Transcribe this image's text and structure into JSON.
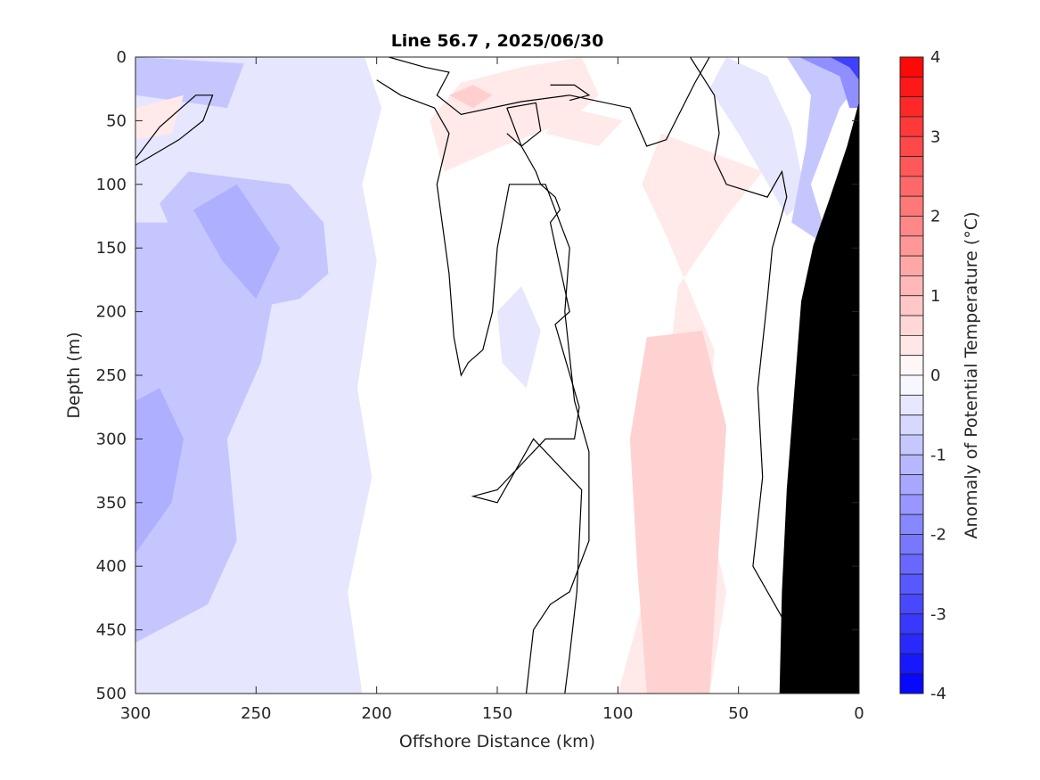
{
  "chart_data": {
    "type": "heatmap",
    "subtype": "filled-contour-section",
    "title": "Line 56.7 , 2025/06/30",
    "xlabel": "Offshore Distance (km)",
    "ylabel": "Depth (m)",
    "colorbar_label": "Anomaly of Potential Temperature (°C)",
    "xlim": [
      300,
      0
    ],
    "x_reversed": true,
    "ylim": [
      500,
      0
    ],
    "y_reversed": true,
    "xticks": [
      300,
      250,
      200,
      150,
      100,
      50,
      0
    ],
    "yticks": [
      0,
      50,
      100,
      150,
      200,
      250,
      300,
      350,
      400,
      450,
      500
    ],
    "colorbar_ticks": [
      4,
      3,
      2,
      1,
      0,
      -1,
      -2,
      -3,
      -4
    ],
    "colorbar_range": [
      -4,
      4
    ],
    "colorbar_levels": 32,
    "colormap": {
      "negative": "#0000ff",
      "zero": "#ffffff",
      "positive": "#ff0000"
    },
    "land_color": "#000000",
    "land_polygon": [
      {
        "x": 0,
        "y": 35
      },
      {
        "x": 5,
        "y": 70
      },
      {
        "x": 12,
        "y": 110
      },
      {
        "x": 19,
        "y": 148
      },
      {
        "x": 24,
        "y": 192
      },
      {
        "x": 30,
        "y": 340
      },
      {
        "x": 32,
        "y": 420
      },
      {
        "x": 33,
        "y": 500
      },
      {
        "x": 0,
        "y": 500
      }
    ],
    "regions": [
      {
        "value": -0.4,
        "points": [
          [
            300,
            0
          ],
          [
            205,
            0
          ],
          [
            198,
            40
          ],
          [
            206,
            100
          ],
          [
            200,
            160
          ],
          [
            208,
            260
          ],
          [
            202,
            330
          ],
          [
            212,
            420
          ],
          [
            206,
            500
          ],
          [
            300,
            500
          ]
        ]
      },
      {
        "value": -0.9,
        "points": [
          [
            300,
            130
          ],
          [
            255,
            130
          ],
          [
            242,
            180
          ],
          [
            248,
            240
          ],
          [
            262,
            300
          ],
          [
            258,
            380
          ],
          [
            270,
            430
          ],
          [
            300,
            460
          ]
        ]
      },
      {
        "value": -0.9,
        "points": [
          [
            272,
            180
          ],
          [
            258,
            200
          ],
          [
            232,
            190
          ],
          [
            220,
            170
          ],
          [
            222,
            130
          ],
          [
            236,
            100
          ],
          [
            278,
            90
          ],
          [
            290,
            115
          ],
          [
            282,
            150
          ]
        ]
      },
      {
        "value": -1.25,
        "points": [
          [
            258,
            100
          ],
          [
            240,
            150
          ],
          [
            250,
            190
          ],
          [
            264,
            160
          ],
          [
            276,
            120
          ]
        ]
      },
      {
        "value": -1.25,
        "points": [
          [
            300,
            270
          ],
          [
            290,
            260
          ],
          [
            280,
            300
          ],
          [
            285,
            350
          ],
          [
            300,
            390
          ]
        ]
      },
      {
        "value": -0.9,
        "points": [
          [
            300,
            0
          ],
          [
            255,
            5
          ],
          [
            262,
            40
          ],
          [
            300,
            30
          ]
        ]
      },
      {
        "value": -0.4,
        "points": [
          [
            55,
            0
          ],
          [
            38,
            15
          ],
          [
            28,
            55
          ],
          [
            22,
            110
          ],
          [
            30,
            125
          ],
          [
            50,
            60
          ],
          [
            62,
            25
          ]
        ]
      },
      {
        "value": -0.9,
        "points": [
          [
            30,
            0
          ],
          [
            20,
            30
          ],
          [
            22,
            70
          ],
          [
            28,
            130
          ],
          [
            12,
            150
          ],
          [
            20,
            100
          ],
          [
            8,
            40
          ],
          [
            0,
            20
          ],
          [
            0,
            0
          ]
        ]
      },
      {
        "value": -1.75,
        "points": [
          [
            25,
            0
          ],
          [
            8,
            15
          ],
          [
            4,
            40
          ],
          [
            0,
            40
          ],
          [
            0,
            0
          ]
        ]
      },
      {
        "value": -3.0,
        "points": [
          [
            12,
            0
          ],
          [
            4,
            8
          ],
          [
            0,
            18
          ],
          [
            0,
            0
          ]
        ]
      },
      {
        "value": -0.4,
        "points": [
          [
            140,
            180
          ],
          [
            132,
            215
          ],
          [
            138,
            260
          ],
          [
            148,
            240
          ],
          [
            150,
            200
          ]
        ]
      },
      {
        "value": 0.35,
        "points": [
          [
            115,
            0
          ],
          [
            108,
            30
          ],
          [
            120,
            50
          ],
          [
            148,
            70
          ],
          [
            172,
            90
          ],
          [
            178,
            50
          ],
          [
            165,
            20
          ],
          [
            140,
            8
          ]
        ]
      },
      {
        "value": 0.75,
        "points": [
          [
            170,
            30
          ],
          [
            160,
            40
          ],
          [
            152,
            30
          ],
          [
            160,
            22
          ]
        ]
      },
      {
        "value": 0.35,
        "points": [
          [
            130,
            60
          ],
          [
            108,
            70
          ],
          [
            98,
            50
          ],
          [
            120,
            40
          ]
        ]
      },
      {
        "value": 0.35,
        "points": [
          [
            300,
            40
          ],
          [
            280,
            30
          ],
          [
            285,
            60
          ],
          [
            300,
            65
          ]
        ]
      },
      {
        "value": 0.35,
        "points": [
          [
            82,
            60
          ],
          [
            40,
            90
          ],
          [
            55,
            125
          ],
          [
            75,
            180
          ],
          [
            80,
            260
          ],
          [
            75,
            330
          ],
          [
            100,
            500
          ],
          [
            92,
            500
          ],
          [
            62,
            500
          ],
          [
            55,
            420
          ],
          [
            65,
            340
          ],
          [
            60,
            230
          ],
          [
            80,
            140
          ],
          [
            90,
            100
          ]
        ]
      },
      {
        "value": 0.7,
        "points": [
          [
            88,
            220
          ],
          [
            65,
            215
          ],
          [
            55,
            290
          ],
          [
            58,
            380
          ],
          [
            62,
            500
          ],
          [
            88,
            500
          ],
          [
            92,
            400
          ],
          [
            95,
            300
          ]
        ]
      }
    ],
    "zero_contours": [
      [
        [
          300,
          80
        ],
        [
          290,
          55
        ],
        [
          275,
          30
        ],
        [
          268,
          30
        ],
        [
          272,
          50
        ],
        [
          282,
          65
        ],
        [
          300,
          85
        ]
      ],
      [
        [
          200,
          18
        ],
        [
          190,
          30
        ],
        [
          176,
          40
        ],
        [
          170,
          60
        ],
        [
          175,
          100
        ],
        [
          170,
          170
        ],
        [
          168,
          220
        ],
        [
          165,
          250
        ],
        [
          162,
          240
        ],
        [
          156,
          230
        ],
        [
          152,
          200
        ],
        [
          150,
          150
        ],
        [
          145,
          100
        ],
        [
          140,
          100
        ],
        [
          130,
          100
        ],
        [
          120,
          150
        ],
        [
          122,
          200
        ],
        [
          118,
          270
        ],
        [
          112,
          310
        ],
        [
          112,
          380
        ],
        [
          120,
          420
        ],
        [
          128,
          430
        ],
        [
          135,
          450
        ],
        [
          138,
          500
        ]
      ],
      [
        [
          146,
          40
        ],
        [
          140,
          70
        ],
        [
          134,
          90
        ],
        [
          132,
          100
        ],
        [
          126,
          110
        ],
        [
          124,
          120
        ],
        [
          128,
          130
        ],
        [
          120,
          200
        ],
        [
          126,
          210
        ],
        [
          116,
          275
        ],
        [
          118,
          300
        ],
        [
          130,
          300
        ],
        [
          150,
          340
        ],
        [
          160,
          345
        ],
        [
          150,
          350
        ],
        [
          135,
          300
        ],
        [
          115,
          340
        ],
        [
          117,
          420
        ],
        [
          120,
          470
        ],
        [
          122,
          500
        ]
      ],
      [
        [
          146,
          40
        ],
        [
          134,
          36
        ],
        [
          132,
          58
        ],
        [
          140,
          70
        ],
        [
          146,
          60
        ]
      ],
      [
        [
          128,
          22
        ],
        [
          118,
          22
        ],
        [
          112,
          30
        ],
        [
          120,
          34
        ]
      ],
      [
        [
          70,
          0
        ],
        [
          60,
          30
        ],
        [
          58,
          60
        ],
        [
          60,
          80
        ],
        [
          55,
          100
        ],
        [
          38,
          110
        ],
        [
          32,
          90
        ],
        [
          30,
          110
        ],
        [
          36,
          150
        ],
        [
          38,
          190
        ],
        [
          42,
          260
        ],
        [
          40,
          330
        ],
        [
          44,
          400
        ],
        [
          32,
          440
        ],
        [
          30,
          410
        ]
      ],
      [
        [
          195,
          0
        ],
        [
          180,
          8
        ],
        [
          170,
          12
        ],
        [
          175,
          30
        ],
        [
          165,
          45
        ],
        [
          140,
          35
        ],
        [
          120,
          30
        ],
        [
          95,
          40
        ],
        [
          88,
          70
        ],
        [
          80,
          65
        ],
        [
          68,
          20
        ],
        [
          62,
          0
        ]
      ]
    ]
  }
}
